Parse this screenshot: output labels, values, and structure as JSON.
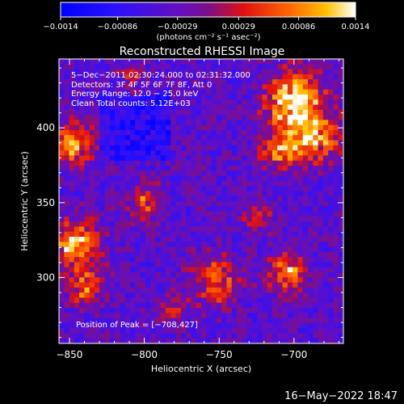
{
  "chart_data": {
    "type": "heatmap",
    "title": "Reconstructed RHESSI Image",
    "xlabel": "Heliocentric X (arcsec)",
    "ylabel": "Heliocentric Y (arcsec)",
    "xlim": [
      -857,
      -667
    ],
    "ylim": [
      256,
      446
    ],
    "x_ticks": [
      -850,
      -800,
      -750,
      -700
    ],
    "x_tick_labels": [
      "−850",
      "−800",
      "−750",
      "−700"
    ],
    "y_ticks": [
      300,
      350,
      400
    ],
    "y_tick_labels": [
      "300",
      "350",
      "400"
    ],
    "colorbar": {
      "range": [
        -0.0014,
        0.0014
      ],
      "ticks": [
        -0.0014,
        -0.00086,
        -0.00029,
        0.00029,
        0.00086,
        0.0014
      ],
      "tick_labels": [
        "−0.0014",
        "−0.00086",
        "−0.00029",
        "0.00029",
        "0.00086",
        "0.0014"
      ],
      "unit_label": "(photons cm⁻² s⁻¹ asec⁻²)"
    },
    "info_lines": [
      "5−Dec−2011 02:30:24.000 to 02:31:32.000",
      "Detectors: 3F 4F 5F 6F 7F 8F, Att 0",
      "Energy Range: 12.0 − 25.0 keV",
      "Clean     Total counts: 5.12E+03"
    ],
    "peak_label": "Position of Peak = [−708,427]",
    "peak_position": [
      -708,
      427
    ],
    "grid": false
  },
  "footer": {
    "date": "16−May−2022 18:47"
  }
}
